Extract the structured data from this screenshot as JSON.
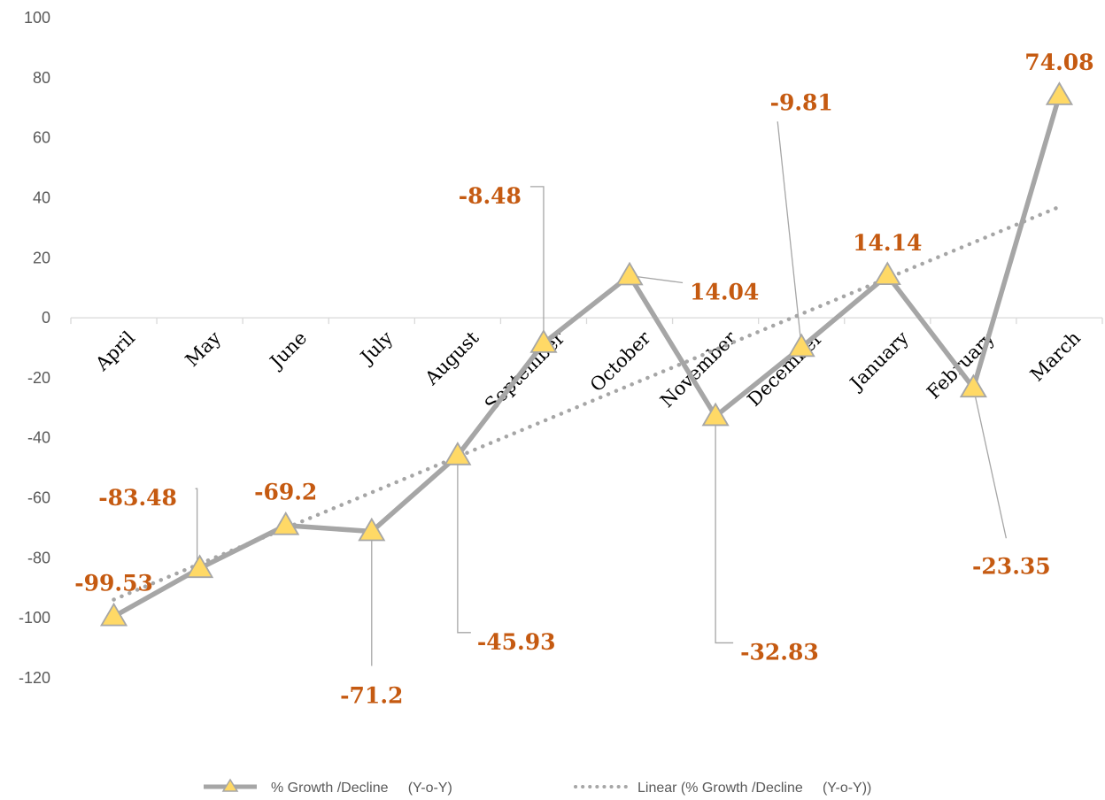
{
  "chart_data": {
    "type": "line",
    "categories": [
      "April",
      "May",
      "June",
      "July",
      "August",
      "September",
      "October",
      "November",
      "December",
      "January",
      "February",
      "March"
    ],
    "series": [
      {
        "name": "% Growth /Decline     (Y-o-Y)",
        "values": [
          -99.53,
          -83.48,
          -69.2,
          -71.2,
          -45.93,
          -8.48,
          14.04,
          -32.83,
          -9.81,
          14.14,
          -23.35,
          74.08
        ],
        "color": "#a6a6a6",
        "marker": "triangle",
        "marker_color": "#ffd966",
        "data_labels": [
          "-99.53",
          "-83.48",
          "-69.2",
          "-71.2",
          "-45.93",
          "-8.48",
          "14.04",
          "-32.83",
          "-9.81",
          "14.14",
          "-23.35",
          "74.08"
        ]
      },
      {
        "name": "Linear (% Growth /Decline     (Y-o-Y))",
        "type": "trendline-linear",
        "style": "dotted",
        "color": "#a6a6a6"
      }
    ],
    "yticks": [
      "100",
      "80",
      "60",
      "40",
      "20",
      "0",
      "-20",
      "-40",
      "-60",
      "-80",
      "-100",
      "-120"
    ],
    "ylim": [
      -120,
      100
    ],
    "grid": false,
    "legend_position": "bottom",
    "label_color": "#c55a11",
    "title": "",
    "xlabel": "",
    "ylabel": ""
  }
}
